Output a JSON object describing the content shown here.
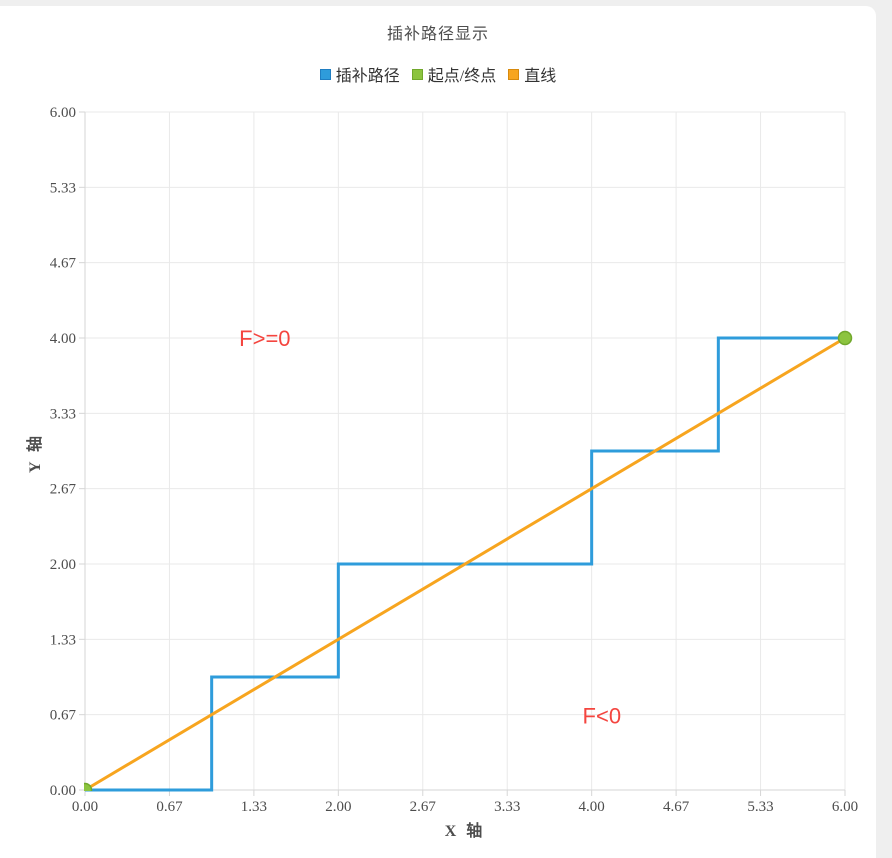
{
  "chart_data": {
    "type": "line",
    "title": "插补路径显示",
    "xlabel": "X 轴",
    "ylabel": "Y 轴",
    "xlim": [
      0,
      6
    ],
    "ylim": [
      0,
      6
    ],
    "grid": true,
    "legend_position": "top",
    "x_tick_labels": [
      "0.00",
      "0.67",
      "1.33",
      "2.00",
      "2.67",
      "3.33",
      "4.00",
      "4.67",
      "5.33",
      "6.00"
    ],
    "y_tick_labels": [
      "0.00",
      "0.67",
      "1.33",
      "2.00",
      "2.67",
      "3.33",
      "4.00",
      "4.67",
      "5.33",
      "6.00"
    ],
    "series": [
      {
        "name": "插补路径",
        "type": "step-line",
        "color": "#2E9CDB",
        "border": "#1F7EC2",
        "points": [
          [
            0,
            0
          ],
          [
            1,
            0
          ],
          [
            1,
            1
          ],
          [
            2,
            1
          ],
          [
            2,
            2
          ],
          [
            3,
            2
          ],
          [
            4,
            2
          ],
          [
            4,
            3
          ],
          [
            5,
            3
          ],
          [
            5,
            4
          ],
          [
            6,
            4
          ]
        ]
      },
      {
        "name": "起点/终点",
        "type": "scatter",
        "color": "#8CC43F",
        "border": "#71A82C",
        "points": [
          [
            0,
            0
          ],
          [
            6,
            4
          ]
        ]
      },
      {
        "name": "直线",
        "type": "line",
        "color": "#F7A51F",
        "border": "#D78A0E",
        "points": [
          [
            0,
            0
          ],
          [
            6,
            4
          ]
        ]
      }
    ],
    "annotations": [
      {
        "text": "F>=0",
        "x": 1.42,
        "y": 4.0,
        "color": "#F4453F"
      },
      {
        "text": "F<0",
        "x": 4.08,
        "y": 0.66,
        "color": "#F4453F"
      }
    ],
    "palette": {
      "grid": "#E9E9E9",
      "axis": "#D6D6D6",
      "tick_text": "#4D4D4D"
    }
  }
}
